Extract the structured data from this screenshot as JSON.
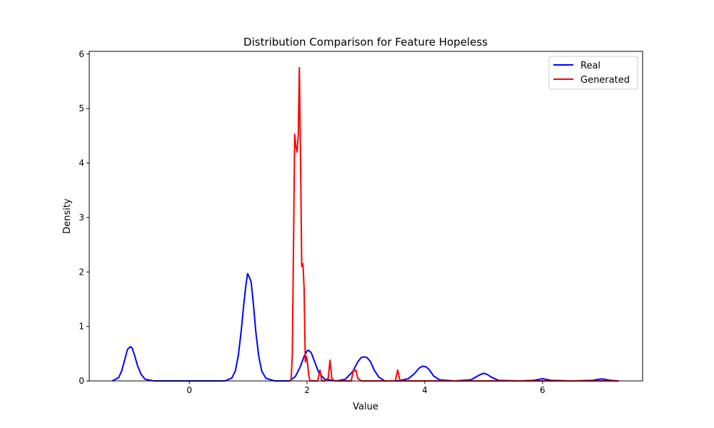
{
  "chart_data": {
    "type": "line",
    "title": "Distribution Comparison for Feature Hopeless",
    "xlabel": "Value",
    "ylabel": "Density",
    "xlim": [
      -1.7,
      7.7
    ],
    "ylim": [
      0,
      6.05
    ],
    "xticks": [
      0,
      2,
      4,
      6
    ],
    "yticks": [
      0,
      1,
      2,
      3,
      4,
      5,
      6
    ],
    "grid": false,
    "legend": "top-right",
    "series": [
      {
        "name": "Real",
        "color": "#0000ff",
        "x": [
          -1.31,
          -1.2,
          -1.15,
          -1.1,
          -1.05,
          -1.0,
          -0.97,
          -0.93,
          -0.88,
          -0.82,
          -0.75,
          -0.6,
          0.0,
          0.6,
          0.72,
          0.78,
          0.83,
          0.88,
          0.92,
          0.96,
          0.99,
          1.02,
          1.05,
          1.09,
          1.13,
          1.18,
          1.23,
          1.3,
          1.45,
          1.7,
          1.8,
          1.88,
          1.95,
          2.0,
          2.03,
          2.07,
          2.12,
          2.2,
          2.3,
          2.5,
          2.65,
          2.78,
          2.86,
          2.92,
          2.97,
          3.02,
          3.08,
          3.14,
          3.22,
          3.32,
          3.55,
          3.72,
          3.82,
          3.9,
          3.96,
          4.02,
          4.08,
          4.15,
          4.25,
          4.5,
          4.78,
          4.88,
          4.95,
          5.0,
          5.06,
          5.13,
          5.25,
          5.6,
          5.85,
          5.95,
          6.0,
          6.05,
          6.15,
          6.5,
          6.85,
          6.95,
          7.0,
          7.05,
          7.15,
          7.3
        ],
        "y": [
          0.0,
          0.06,
          0.18,
          0.38,
          0.58,
          0.63,
          0.6,
          0.47,
          0.28,
          0.12,
          0.03,
          0.0,
          0.0,
          0.0,
          0.05,
          0.18,
          0.45,
          0.9,
          1.35,
          1.75,
          1.97,
          1.9,
          1.82,
          1.4,
          0.9,
          0.45,
          0.18,
          0.05,
          0.0,
          0.0,
          0.08,
          0.25,
          0.45,
          0.55,
          0.56,
          0.52,
          0.38,
          0.15,
          0.03,
          0.0,
          0.03,
          0.18,
          0.35,
          0.43,
          0.44,
          0.43,
          0.35,
          0.2,
          0.07,
          0.0,
          0.0,
          0.04,
          0.13,
          0.23,
          0.27,
          0.26,
          0.2,
          0.09,
          0.02,
          0.0,
          0.02,
          0.08,
          0.12,
          0.14,
          0.12,
          0.07,
          0.01,
          0.0,
          0.01,
          0.03,
          0.04,
          0.03,
          0.01,
          0.0,
          0.01,
          0.03,
          0.035,
          0.03,
          0.01,
          0.0
        ]
      },
      {
        "name": "Generated",
        "color": "#ff0000",
        "x": [
          1.7,
          1.73,
          1.75,
          1.77,
          1.79,
          1.81,
          1.83,
          1.85,
          1.87,
          1.89,
          1.91,
          1.93,
          1.95,
          1.97,
          1.99,
          2.01,
          2.03,
          2.05,
          2.08,
          2.12,
          2.18,
          2.2,
          2.22,
          2.25,
          2.3,
          2.36,
          2.39,
          2.42,
          2.46,
          2.6,
          2.75,
          2.79,
          2.81,
          2.83,
          2.86,
          2.92,
          3.4,
          3.5,
          3.54,
          3.58,
          3.65,
          7.3
        ],
        "y": [
          0.0,
          0.02,
          0.5,
          2.5,
          4.53,
          4.3,
          4.2,
          4.5,
          5.75,
          4.0,
          2.1,
          2.15,
          1.7,
          0.35,
          0.45,
          0.3,
          0.1,
          0.0,
          0.0,
          0.0,
          0.0,
          0.1,
          0.2,
          0.0,
          0.0,
          0.05,
          0.38,
          0.05,
          0.0,
          0.0,
          0.0,
          0.21,
          0.18,
          0.2,
          0.05,
          0.0,
          0.0,
          0.0,
          0.2,
          0.0,
          0.0,
          0.0
        ]
      }
    ]
  }
}
